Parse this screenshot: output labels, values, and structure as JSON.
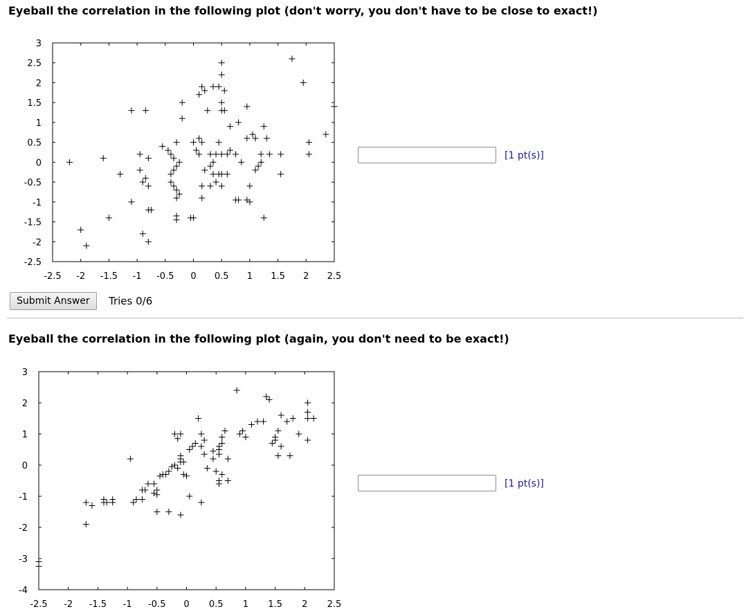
{
  "questions": [
    {
      "title": "Eyeball the correlation in the following plot (don't worry, you don't have to be close to exact!)",
      "answer_value": "",
      "points_label": "[1 pt(s)]",
      "submit_label": "Submit Answer",
      "tries_label": "Tries 0/6"
    },
    {
      "title": "Eyeball the correlation in the following plot (again, you don't need to be exact!)",
      "answer_value": "",
      "points_label": "[1 pt(s)]"
    }
  ],
  "chart_data": [
    {
      "type": "scatter",
      "marker": "plus",
      "xlim": [
        -2.5,
        2.5
      ],
      "ylim": [
        -2.5,
        3
      ],
      "x_ticks": [
        "-2.5",
        "-2",
        "-1.5",
        "-1",
        "-0.5",
        "0",
        "0.5",
        "1",
        "1.5",
        "2",
        "2.5"
      ],
      "y_ticks": [
        "3",
        "2.5",
        "2",
        "1.5",
        "1",
        "0.5",
        "0",
        "-0.5",
        "-1",
        "-1.5",
        "-2",
        "-2.5"
      ],
      "points": [
        [
          -2.2,
          0.0
        ],
        [
          -1.6,
          0.1
        ],
        [
          -2.0,
          -1.7
        ],
        [
          -1.9,
          -2.1
        ],
        [
          -1.5,
          -1.4
        ],
        [
          -1.3,
          -0.3
        ],
        [
          -1.1,
          1.3
        ],
        [
          -0.85,
          1.3
        ],
        [
          -1.1,
          -1.0
        ],
        [
          -0.95,
          0.2
        ],
        [
          -0.8,
          0.1
        ],
        [
          -0.95,
          -0.2
        ],
        [
          -0.85,
          -0.4
        ],
        [
          -0.9,
          -0.5
        ],
        [
          -0.8,
          -0.6
        ],
        [
          -0.8,
          -1.2
        ],
        [
          -0.75,
          -1.2
        ],
        [
          -0.9,
          -1.8
        ],
        [
          -0.8,
          -2.0
        ],
        [
          -0.55,
          0.4
        ],
        [
          -0.45,
          0.3
        ],
        [
          -0.4,
          0.2
        ],
        [
          -0.35,
          0.1
        ],
        [
          -0.3,
          0.5
        ],
        [
          -0.3,
          -0.1
        ],
        [
          -0.4,
          -0.3
        ],
        [
          -0.35,
          -0.2
        ],
        [
          -0.4,
          -0.5
        ],
        [
          -0.35,
          -0.6
        ],
        [
          -0.3,
          -0.7
        ],
        [
          -0.25,
          -0.8
        ],
        [
          -0.3,
          -0.9
        ],
        [
          -0.25,
          -0.0
        ],
        [
          -0.3,
          -1.35
        ],
        [
          -0.3,
          -1.45
        ],
        [
          -0.2,
          1.1
        ],
        [
          -0.2,
          1.5
        ],
        [
          0.0,
          -1.4
        ],
        [
          -0.05,
          -1.4
        ],
        [
          0.0,
          0.5
        ],
        [
          0.1,
          0.6
        ],
        [
          0.15,
          0.5
        ],
        [
          0.05,
          0.3
        ],
        [
          0.1,
          0.2
        ],
        [
          0.1,
          1.7
        ],
        [
          0.15,
          1.9
        ],
        [
          0.2,
          1.8
        ],
        [
          0.25,
          1.3
        ],
        [
          0.3,
          0.2
        ],
        [
          0.2,
          -0.2
        ],
        [
          0.3,
          -0.1
        ],
        [
          0.35,
          0.0
        ],
        [
          0.4,
          0.2
        ],
        [
          0.35,
          -0.3
        ],
        [
          0.45,
          -0.3
        ],
        [
          0.3,
          -0.6
        ],
        [
          0.4,
          -0.5
        ],
        [
          0.15,
          -0.6
        ],
        [
          0.15,
          -0.9
        ],
        [
          0.5,
          -0.6
        ],
        [
          0.45,
          0.5
        ],
        [
          0.5,
          0.2
        ],
        [
          0.5,
          -0.3
        ],
        [
          0.6,
          -0.3
        ],
        [
          0.6,
          0.2
        ],
        [
          0.65,
          0.3
        ],
        [
          0.75,
          0.2
        ],
        [
          0.85,
          0.0
        ],
        [
          0.5,
          2.5
        ],
        [
          0.5,
          2.2
        ],
        [
          0.5,
          1.5
        ],
        [
          0.5,
          1.3
        ],
        [
          0.55,
          1.3
        ],
        [
          0.45,
          1.9
        ],
        [
          0.55,
          1.8
        ],
        [
          0.35,
          1.9
        ],
        [
          0.65,
          0.9
        ],
        [
          0.8,
          1.0
        ],
        [
          0.95,
          1.4
        ],
        [
          0.95,
          0.6
        ],
        [
          1.05,
          0.7
        ],
        [
          1.1,
          0.6
        ],
        [
          1.0,
          -0.6
        ],
        [
          1.0,
          -1.0
        ],
        [
          0.95,
          -0.95
        ],
        [
          0.75,
          -0.95
        ],
        [
          0.8,
          -0.95
        ],
        [
          1.1,
          -0.2
        ],
        [
          1.15,
          -0.1
        ],
        [
          1.2,
          0.0
        ],
        [
          1.2,
          0.2
        ],
        [
          1.25,
          0.9
        ],
        [
          1.35,
          0.2
        ],
        [
          1.3,
          0.6
        ],
        [
          1.55,
          0.2
        ],
        [
          1.55,
          -0.3
        ],
        [
          1.25,
          -1.4
        ],
        [
          1.75,
          2.6
        ],
        [
          1.95,
          2.0
        ],
        [
          2.05,
          0.5
        ],
        [
          2.05,
          0.2
        ],
        [
          2.35,
          0.7
        ],
        [
          2.5,
          1.4
        ]
      ]
    },
    {
      "type": "scatter",
      "marker": "plus",
      "xlim": [
        -2.5,
        2.5
      ],
      "ylim": [
        -4,
        3
      ],
      "x_ticks": [
        "-2.5",
        "-2",
        "-1.5",
        "-1",
        "-0.5",
        "0",
        "0.5",
        "1",
        "1.5",
        "2",
        "2.5"
      ],
      "y_ticks": [
        "3",
        "2",
        "1",
        "0",
        "-1",
        "-2",
        "-3",
        "-4"
      ],
      "points": [
        [
          -2.5,
          -3.1
        ],
        [
          -2.5,
          -3.25
        ],
        [
          -1.7,
          -1.2
        ],
        [
          -1.6,
          -1.3
        ],
        [
          -1.7,
          -1.9
        ],
        [
          -1.4,
          -1.1
        ],
        [
          -1.35,
          -1.2
        ],
        [
          -1.4,
          -1.2
        ],
        [
          -1.25,
          -1.2
        ],
        [
          -1.25,
          -1.1
        ],
        [
          -0.9,
          -1.2
        ],
        [
          -0.85,
          -1.1
        ],
        [
          -0.75,
          -1.1
        ],
        [
          -0.7,
          -0.8
        ],
        [
          -0.75,
          -0.8
        ],
        [
          -0.65,
          -0.6
        ],
        [
          -0.55,
          -0.6
        ],
        [
          -0.5,
          -0.95
        ],
        [
          -0.5,
          -0.8
        ],
        [
          -0.45,
          -0.35
        ],
        [
          -0.4,
          -0.3
        ],
        [
          -0.35,
          -0.3
        ],
        [
          -0.3,
          -0.2
        ],
        [
          -0.25,
          -0.05
        ],
        [
          -0.2,
          0.0
        ],
        [
          -0.15,
          -0.1
        ],
        [
          -0.1,
          0.1
        ],
        [
          -0.05,
          -0.3
        ],
        [
          0.0,
          -0.35
        ],
        [
          -0.2,
          1.0
        ],
        [
          -0.15,
          0.85
        ],
        [
          -0.1,
          1.0
        ],
        [
          -0.1,
          0.3
        ],
        [
          -0.1,
          0.2
        ],
        [
          -0.05,
          0.1
        ],
        [
          0.05,
          0.5
        ],
        [
          0.1,
          0.6
        ],
        [
          0.15,
          0.7
        ],
        [
          0.2,
          1.5
        ],
        [
          0.25,
          1.0
        ],
        [
          0.25,
          0.6
        ],
        [
          0.3,
          0.8
        ],
        [
          0.3,
          0.35
        ],
        [
          0.35,
          -0.1
        ],
        [
          0.45,
          0.2
        ],
        [
          0.5,
          -0.2
        ],
        [
          0.45,
          0.45
        ],
        [
          0.55,
          0.35
        ],
        [
          0.55,
          0.5
        ],
        [
          0.55,
          0.6
        ],
        [
          0.6,
          0.9
        ],
        [
          0.6,
          0.7
        ],
        [
          0.65,
          1.1
        ],
        [
          0.7,
          0.2
        ],
        [
          0.7,
          -0.5
        ],
        [
          0.55,
          -0.6
        ],
        [
          -0.95,
          0.2
        ],
        [
          -0.55,
          -0.9
        ],
        [
          -0.5,
          -1.5
        ],
        [
          -0.3,
          -1.5
        ],
        [
          -0.1,
          -1.6
        ],
        [
          0.05,
          -1.0
        ],
        [
          0.25,
          -1.2
        ],
        [
          0.55,
          -0.5
        ],
        [
          0.6,
          -0.3
        ],
        [
          0.85,
          2.4
        ],
        [
          0.9,
          1.0
        ],
        [
          0.95,
          1.1
        ],
        [
          1.1,
          1.3
        ],
        [
          1.2,
          1.4
        ],
        [
          1.3,
          1.4
        ],
        [
          1.35,
          2.2
        ],
        [
          1.4,
          2.1
        ],
        [
          1.45,
          0.7
        ],
        [
          1.5,
          0.8
        ],
        [
          1.5,
          0.9
        ],
        [
          1.55,
          1.1
        ],
        [
          1.6,
          0.6
        ],
        [
          1.6,
          1.6
        ],
        [
          1.7,
          1.4
        ],
        [
          1.8,
          1.5
        ],
        [
          1.75,
          0.3
        ],
        [
          1.55,
          0.3
        ],
        [
          1.9,
          1.0
        ],
        [
          2.05,
          2.0
        ],
        [
          2.05,
          1.5
        ],
        [
          2.05,
          1.7
        ],
        [
          2.15,
          1.5
        ],
        [
          2.05,
          0.8
        ],
        [
          1.0,
          0.9
        ]
      ]
    }
  ]
}
